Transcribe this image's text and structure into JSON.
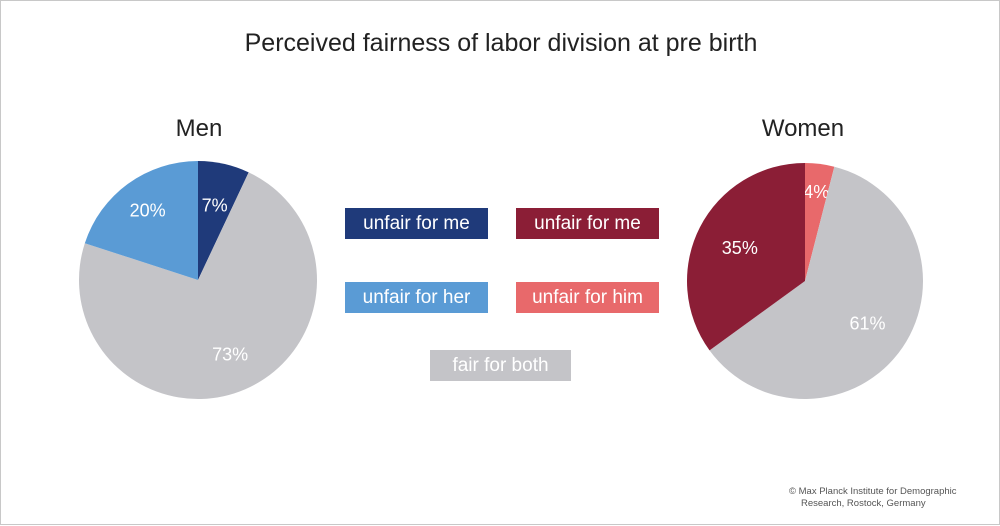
{
  "chart_data": {
    "type": "pie",
    "title": "Perceived fairness of labor division at pre birth",
    "charts": [
      {
        "name": "Men",
        "slices": [
          {
            "label": "unfair for me",
            "value": 7,
            "text": "7%",
            "color": "#1f3a7a"
          },
          {
            "label": "fair for both",
            "value": 73,
            "text": "73%",
            "color": "#c4c4c8"
          },
          {
            "label": "unfair for her",
            "value": 20,
            "text": "20%",
            "color": "#5a9bd5"
          }
        ]
      },
      {
        "name": "Women",
        "slices": [
          {
            "label": "unfair for him",
            "value": 4,
            "text": "4%",
            "color": "#e8696b"
          },
          {
            "label": "fair for both",
            "value": 61,
            "text": "61%",
            "color": "#c4c4c8"
          },
          {
            "label": "unfair for me",
            "value": 35,
            "text": "35%",
            "color": "#8b1e36"
          }
        ]
      }
    ],
    "legend": [
      {
        "label": "unfair for me",
        "color": "#1f3a7a"
      },
      {
        "label": "unfair for me",
        "color": "#8b1e36"
      },
      {
        "label": "unfair for her",
        "color": "#5a9bd5"
      },
      {
        "label": "unfair for him",
        "color": "#e8696b"
      },
      {
        "label": "fair for both",
        "color": "#c4c4c8"
      }
    ],
    "legend_placement": "center"
  },
  "copyright": {
    "line1": "© Max Planck Institute for Demographic",
    "line2": "Research, Rostock, Germany"
  }
}
